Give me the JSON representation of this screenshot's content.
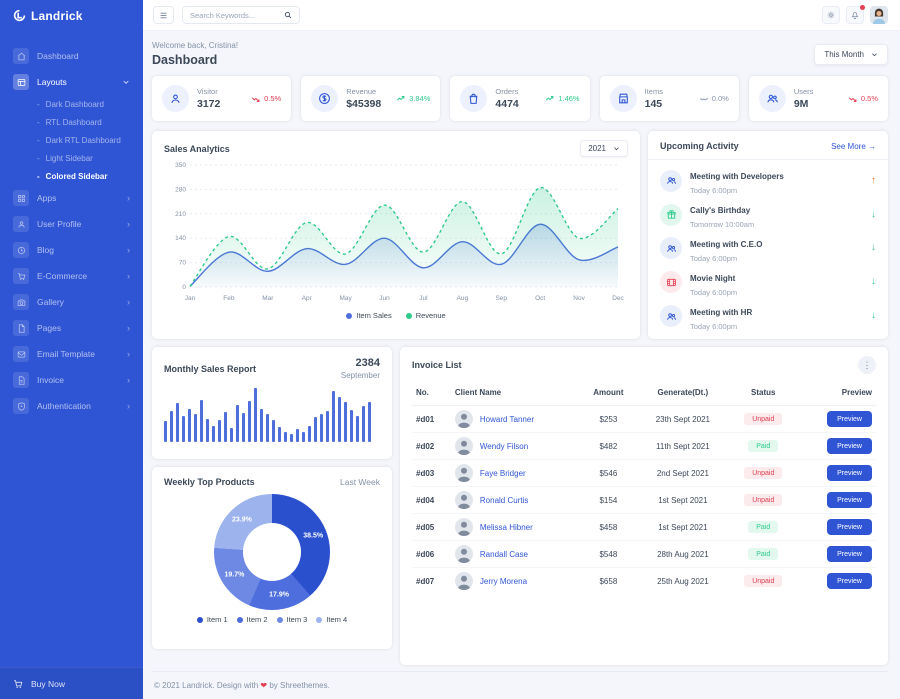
{
  "theme": {
    "primary": "#2f55d4",
    "green": "#2eca8b",
    "red": "#e43f52",
    "orange": "#f17425",
    "muted": "#8492a6"
  },
  "brand": {
    "name": "Landrick"
  },
  "sidebar": {
    "items": [
      {
        "label": "Dashboard",
        "icon": "home-icon"
      },
      {
        "label": "Layouts",
        "icon": "layout-icon",
        "expanded": true,
        "children": [
          {
            "label": "Dark Dashboard"
          },
          {
            "label": "RTL Dashboard"
          },
          {
            "label": "Dark RTL Dashboard"
          },
          {
            "label": "Light Sidebar"
          },
          {
            "label": "Colored Sidebar",
            "active": true
          }
        ]
      },
      {
        "label": "Apps",
        "icon": "grid-icon"
      },
      {
        "label": "User Profile",
        "icon": "user-icon"
      },
      {
        "label": "Blog",
        "icon": "clock-icon"
      },
      {
        "label": "E-Commerce",
        "icon": "cart-icon"
      },
      {
        "label": "Gallery",
        "icon": "camera-icon"
      },
      {
        "label": "Pages",
        "icon": "file-icon"
      },
      {
        "label": "Email Template",
        "icon": "mail-icon"
      },
      {
        "label": "Invoice",
        "icon": "invoice-icon"
      },
      {
        "label": "Authentication",
        "icon": "shield-icon"
      }
    ],
    "buy_now_label": "Buy Now"
  },
  "header": {
    "search_placeholder": "Search Keywords..."
  },
  "page": {
    "welcome": "Welcome back, Cristina!",
    "title": "Dashboard",
    "period": "This Month"
  },
  "stats": [
    {
      "label": "Visitor",
      "value": "3172",
      "delta": "0.5%",
      "trend": "down",
      "icon": "person-icon"
    },
    {
      "label": "Revenue",
      "value": "$45398",
      "delta": "3.84%",
      "trend": "up",
      "icon": "dollar-icon"
    },
    {
      "label": "Orders",
      "value": "4474",
      "delta": "1.46%",
      "trend": "up",
      "icon": "bag-icon"
    },
    {
      "label": "Items",
      "value": "145",
      "delta": "0.0%",
      "trend": "flat",
      "icon": "store-icon"
    },
    {
      "label": "Users",
      "value": "9M",
      "delta": "0.5%",
      "trend": "down",
      "icon": "users-icon"
    }
  ],
  "sales_analytics": {
    "title": "Sales Analytics",
    "year": "2021",
    "chart_data": {
      "type": "area",
      "x": [
        "Jan",
        "Feb",
        "Mar",
        "Apr",
        "May",
        "Jun",
        "Jul",
        "Aug",
        "Sep",
        "Oct",
        "Nov",
        "Dec"
      ],
      "series": [
        {
          "name": "Item Sales",
          "color": "#4e6fdb",
          "line": "solid",
          "values": [
            2,
            100,
            45,
            110,
            65,
            140,
            55,
            130,
            65,
            180,
            78,
            115
          ]
        },
        {
          "name": "Revenue",
          "color": "#2eca8b",
          "line": "dashed",
          "values": [
            2,
            145,
            52,
            185,
            95,
            235,
            100,
            245,
            95,
            285,
            140,
            225
          ]
        }
      ],
      "ylim": [
        0,
        350
      ],
      "yticks": [
        0,
        70,
        140,
        210,
        280,
        350
      ],
      "grid": true,
      "legend_position": "bottom"
    }
  },
  "upcoming": {
    "title": "Upcoming Activity",
    "see_more": "See More",
    "items": [
      {
        "title": "Meeting with Developers",
        "time": "Today 6:00pm",
        "icon": "users-icon",
        "icon_color": "blue",
        "direction": "up"
      },
      {
        "title": "Cally's Birthday",
        "time": "Tomorrow 10:00am",
        "icon": "gift-icon",
        "icon_color": "green",
        "direction": "down"
      },
      {
        "title": "Meeting with C.E.O",
        "time": "Today 6:00pm",
        "icon": "users-icon",
        "icon_color": "blue",
        "direction": "down"
      },
      {
        "title": "Movie Night",
        "time": "Today 6:00pm",
        "icon": "film-icon",
        "icon_color": "red",
        "direction": "down"
      },
      {
        "title": "Meeting with HR",
        "time": "Today 6:00pm",
        "icon": "users-icon",
        "icon_color": "blue",
        "direction": "down"
      }
    ]
  },
  "monthly_sales": {
    "title": "Monthly Sales Report",
    "value": "2384",
    "month": "September",
    "chart_data": {
      "type": "bar",
      "color": "#4e6fdb",
      "values": [
        38,
        58,
        72,
        48,
        62,
        52,
        78,
        42,
        30,
        40,
        55,
        26,
        68,
        54,
        76,
        100,
        62,
        52,
        40,
        28,
        18,
        14,
        24,
        18,
        30,
        46,
        52,
        58,
        95,
        84,
        74,
        60,
        48,
        66,
        74
      ]
    }
  },
  "weekly_products": {
    "title": "Weekly Top Products",
    "period": "Last Week",
    "chart_data": {
      "type": "pie",
      "labels": [
        "Item 1",
        "Item 2",
        "Item 3",
        "Item 4"
      ],
      "values": [
        38.5,
        17.9,
        19.7,
        23.9
      ],
      "colors": [
        "#2b50ce",
        "#4d6edc",
        "#6d89e4",
        "#9db3ee"
      ]
    }
  },
  "invoices": {
    "title": "Invoice List",
    "columns": [
      "No.",
      "Client Name",
      "Amount",
      "Generate(Dt.)",
      "Status",
      "Preview"
    ],
    "rows": [
      {
        "no": "#d01",
        "client": "Howard Tanner",
        "amount": "$253",
        "date": "23th Sept 2021",
        "status": "Unpaid",
        "action": "Preview"
      },
      {
        "no": "#d02",
        "client": "Wendy Filson",
        "amount": "$482",
        "date": "11th Sept 2021",
        "status": "Paid",
        "action": "Preview"
      },
      {
        "no": "#d03",
        "client": "Faye Bridger",
        "amount": "$546",
        "date": "2nd Sept 2021",
        "status": "Unpaid",
        "action": "Preview"
      },
      {
        "no": "#d04",
        "client": "Ronald Curtis",
        "amount": "$154",
        "date": "1st Sept 2021",
        "status": "Unpaid",
        "action": "Preview"
      },
      {
        "no": "#d05",
        "client": "Melissa Hibner",
        "amount": "$458",
        "date": "1st Sept 2021",
        "status": "Paid",
        "action": "Preview"
      },
      {
        "no": "#d06",
        "client": "Randall Case",
        "amount": "$548",
        "date": "28th Aug 2021",
        "status": "Paid",
        "action": "Preview"
      },
      {
        "no": "#d07",
        "client": "Jerry Morena",
        "amount": "$658",
        "date": "25th Aug 2021",
        "status": "Unpaid",
        "action": "Preview"
      }
    ]
  },
  "footer": {
    "prefix": "© 2021 Landrick. Design with",
    "heart": "❤",
    "suffix": "by Shreethemes."
  }
}
